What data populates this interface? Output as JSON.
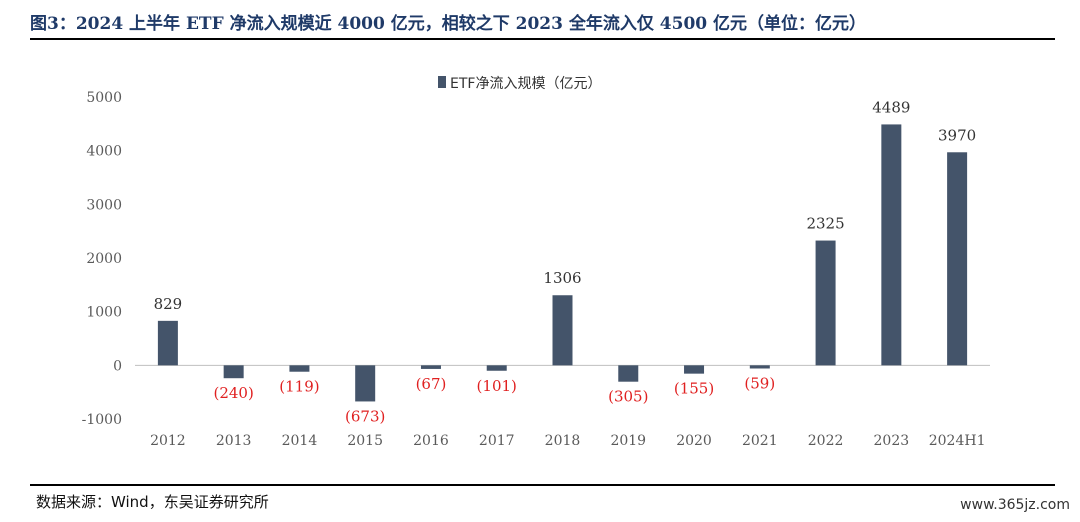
{
  "header": {
    "title": "图3：2024 上半年 ETF 净流入规模近 4000 亿元，相较之下 2023 全年流入仅 4500 亿元（单位：亿元）"
  },
  "footer": {
    "source": "数据来源：Wind，东吴证券研究所",
    "watermark": "www.365jz.com"
  },
  "chart_data": {
    "type": "bar",
    "title": "",
    "legend": [
      "ETF净流入规模（亿元）"
    ],
    "legend_position": "top-center",
    "xlabel": "",
    "ylabel": "",
    "ylim": [
      -1000,
      5000
    ],
    "yticks": [
      -1000,
      0,
      1000,
      2000,
      3000,
      4000,
      5000
    ],
    "ytick_labels": [
      "-1000",
      "0",
      "1000",
      "2000",
      "3000",
      "4000",
      "5000"
    ],
    "categories": [
      "2012",
      "2013",
      "2014",
      "2015",
      "2016",
      "2017",
      "2018",
      "2019",
      "2020",
      "2021",
      "2022",
      "2023",
      "2024H1"
    ],
    "series": [
      {
        "name": "ETF净流入规模（亿元）",
        "color": "#44546a",
        "values": [
          829,
          -240,
          -119,
          -673,
          -67,
          -101,
          1306,
          -305,
          -155,
          -59,
          2325,
          4489,
          3970
        ],
        "labels": [
          "829",
          "(240)",
          "(119)",
          "(673)",
          "(67)",
          "(101)",
          "1306",
          "(305)",
          "(155)",
          "(59)",
          "2325",
          "4489",
          "3970"
        ]
      }
    ],
    "negative_label_color": "#e02020",
    "positive_label_color": "#333333"
  }
}
